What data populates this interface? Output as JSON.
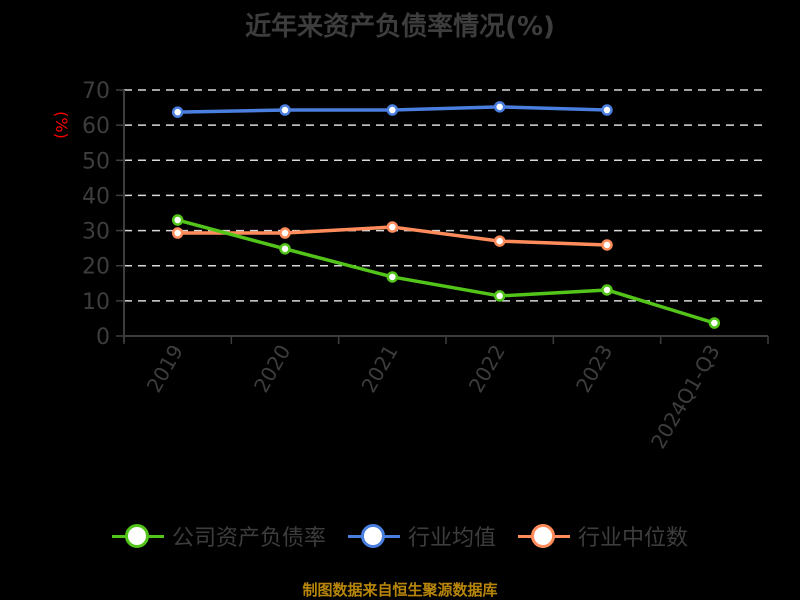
{
  "title": "近年来资产负债率情况(%)",
  "source": "制图数据来自恒生聚源数据库",
  "colors": {
    "company": "#52c41a",
    "industry_avg": "#4a7fe0",
    "industry_median": "#ff8c5a",
    "ylabel": "#ff0000",
    "axis_text": "#3d3d3d",
    "grid": "#d9d9d9",
    "source": "#b8860b"
  },
  "legend": [
    {
      "label": "公司资产负债率",
      "color": "#52c41a"
    },
    {
      "label": "行业均值",
      "color": "#4a7fe0"
    },
    {
      "label": "行业中位数",
      "color": "#ff8c5a"
    }
  ],
  "chart_data": {
    "type": "line",
    "title": "近年来资产负债率情况(%)",
    "xlabel": "",
    "ylabel": "(%)",
    "ylim": [
      0,
      70
    ],
    "yticks": [
      0,
      10,
      20,
      30,
      40,
      50,
      60,
      70
    ],
    "grid": true,
    "legend_position": "bottom",
    "categories": [
      "2019",
      "2020",
      "2021",
      "2022",
      "2023",
      "2024Q1-Q3"
    ],
    "series": [
      {
        "name": "公司资产负债率",
        "values": [
          33.0,
          24.8,
          16.8,
          11.4,
          13.1,
          3.7
        ]
      },
      {
        "name": "行业均值",
        "values": [
          63.7,
          64.3,
          64.3,
          65.2,
          64.3,
          null
        ]
      },
      {
        "name": "行业中位数",
        "values": [
          29.3,
          29.3,
          31.0,
          27.0,
          25.9,
          null
        ]
      }
    ]
  }
}
